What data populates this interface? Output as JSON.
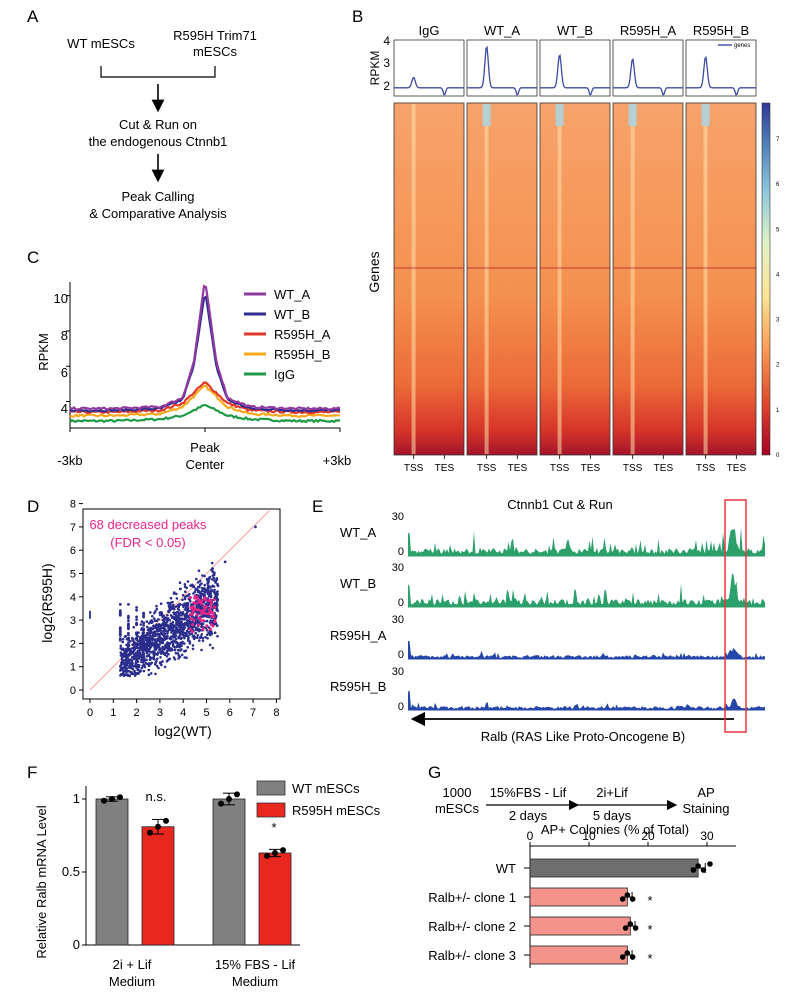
{
  "panel_letters": [
    "A",
    "B",
    "C",
    "D",
    "E",
    "F",
    "G"
  ],
  "panel_a": {
    "wt_label": "WT mESCs",
    "mut_label_1": "R595H Trim71",
    "mut_label_2": "mESCs",
    "step1_line1": "Cut & Run on",
    "step1_line2": "the endogenous Ctnnb1",
    "step2_line1": "Peak Calling",
    "step2_line2": "& Comparative Analysis"
  },
  "panel_b": {
    "samples": [
      "IgG",
      "WT_A",
      "WT_B",
      "R595H_A",
      "R595H_B"
    ],
    "profile_ylabel": "RPKM",
    "profile_yticks": [
      "2",
      "3",
      "4"
    ],
    "legend_label": "genes",
    "rows_label": "Genes",
    "xtick_labels": [
      "TSS",
      "TES"
    ],
    "colorbar_ticks": [
      "0",
      "1",
      "2",
      "3",
      "4",
      "5",
      "6",
      "7"
    ],
    "profile_peaks": [
      2.5,
      4.0,
      3.6,
      3.4,
      3.5
    ],
    "colors": {
      "line": "#3b4ba3",
      "high": "#2c4f9e",
      "mid": "#f8d88a",
      "low": "#b2182b"
    }
  },
  "panel_c": {
    "ylabel": "RPKM",
    "yticks": [
      "4",
      "6",
      "8",
      "10"
    ],
    "xtick_left": "-3kb",
    "center_1": "Peak",
    "center_2": "Center",
    "xtick_right": "+3kb",
    "legend": [
      {
        "name": "WT_A",
        "color": "#8e3a9e"
      },
      {
        "name": "WT_B",
        "color": "#2e2d8f"
      },
      {
        "name": "R595H_A",
        "color": "#e0392b"
      },
      {
        "name": "R595H_B",
        "color": "#f7a81b"
      },
      {
        "name": "IgG",
        "color": "#1e9a45"
      }
    ]
  },
  "panel_d": {
    "annotation_1": "68 decreased peaks",
    "annotation_2": "(FDR < 0.05)",
    "xlabel": "log2(WT)",
    "ylabel": "log2(R595H)",
    "xticks": [
      "0",
      "1",
      "2",
      "3",
      "4",
      "5",
      "6",
      "7",
      "8"
    ],
    "yticks": [
      "0",
      "1",
      "2",
      "3",
      "4",
      "5",
      "6",
      "7",
      "8"
    ]
  },
  "panel_e": {
    "title": "Ctnnb1 Cut & Run",
    "tracks": [
      {
        "name": "WT_A",
        "max": "30",
        "zero": "0",
        "color": "#2ca06a"
      },
      {
        "name": "WT_B",
        "max": "30",
        "zero": "0",
        "color": "#2ca06a"
      },
      {
        "name": "R595H_A",
        "max": "30",
        "zero": "0",
        "color": "#2446a8"
      },
      {
        "name": "R595H_B",
        "max": "30",
        "zero": "0",
        "color": "#2446a8"
      }
    ],
    "gene_label": "Ralb (RAS Like Proto-Oncogene B)"
  },
  "panel_f": {
    "ylabel": "Relative Ralb mRNA Level",
    "yticks": [
      "0",
      "0.5",
      "1"
    ],
    "legend": [
      {
        "name": "WT mESCs",
        "color": "#808080"
      },
      {
        "name": "R595H mESCs",
        "color": "#e8281f"
      }
    ],
    "group_1_line1": "2i + Lif",
    "group_1_line2": "Medium",
    "group_2_line1": "15% FBS - Lif",
    "group_2_line2": "Medium",
    "sig_1": "n.s.",
    "sig_2": "*"
  },
  "panel_g": {
    "step_cells_1": "1000",
    "step_cells_2": "mESCs",
    "step_a": "15%FBS - Lif",
    "step_a_days": "2 days",
    "step_b": "2i+Lif",
    "step_b_days": "5 days",
    "step_end_1": "AP",
    "step_end_2": "Staining",
    "axis_title": "AP+ Colonies (% of Total)",
    "xticks": [
      "0",
      "10",
      "20",
      "30"
    ],
    "sig": "*"
  },
  "chart_data": [
    {
      "type": "line",
      "panel": "C",
      "ylabel": "RPKM",
      "ylim": [
        2.5,
        11
      ],
      "x": [
        -3,
        -2,
        -1,
        -0.5,
        -0.25,
        0,
        0.25,
        0.5,
        1,
        2,
        3
      ],
      "series": [
        {
          "name": "WT_A",
          "values": [
            3.6,
            3.6,
            3.7,
            4.2,
            6.2,
            10.9,
            6.3,
            4.2,
            3.7,
            3.6,
            3.6
          ]
        },
        {
          "name": "WT_B",
          "values": [
            3.5,
            3.5,
            3.6,
            4.1,
            6.0,
            10.3,
            6.0,
            4.1,
            3.6,
            3.5,
            3.5
          ]
        },
        {
          "name": "R595H_A",
          "values": [
            3.4,
            3.4,
            3.5,
            3.9,
            4.5,
            5.1,
            4.5,
            3.9,
            3.5,
            3.4,
            3.4
          ]
        },
        {
          "name": "R595H_B",
          "values": [
            3.2,
            3.2,
            3.3,
            3.7,
            4.3,
            4.9,
            4.3,
            3.7,
            3.3,
            3.2,
            3.2
          ]
        },
        {
          "name": "IgG",
          "values": [
            2.9,
            2.9,
            3.0,
            3.2,
            3.5,
            3.8,
            3.5,
            3.2,
            3.0,
            2.9,
            2.9
          ]
        }
      ]
    },
    {
      "type": "bar",
      "panel": "F",
      "ylabel": "Relative Ralb mRNA Level",
      "ylim": [
        0,
        1.1
      ],
      "categories": [
        "2i + Lif Medium",
        "15% FBS - Lif Medium"
      ],
      "series": [
        {
          "name": "WT mESCs",
          "values": [
            1.0,
            1.0
          ]
        },
        {
          "name": "R595H mESCs",
          "values": [
            0.81,
            0.63
          ]
        }
      ]
    },
    {
      "type": "bar",
      "panel": "G",
      "orientation": "horizontal",
      "xlabel": "AP+ Colonies (% of Total)",
      "xlim": [
        0,
        35
      ],
      "categories": [
        "WT",
        "Ralb+/- clone 1",
        "Ralb+/- clone 2",
        "Ralb+/- clone 3"
      ],
      "values": [
        28.5,
        16.5,
        17,
        16.5
      ]
    }
  ]
}
